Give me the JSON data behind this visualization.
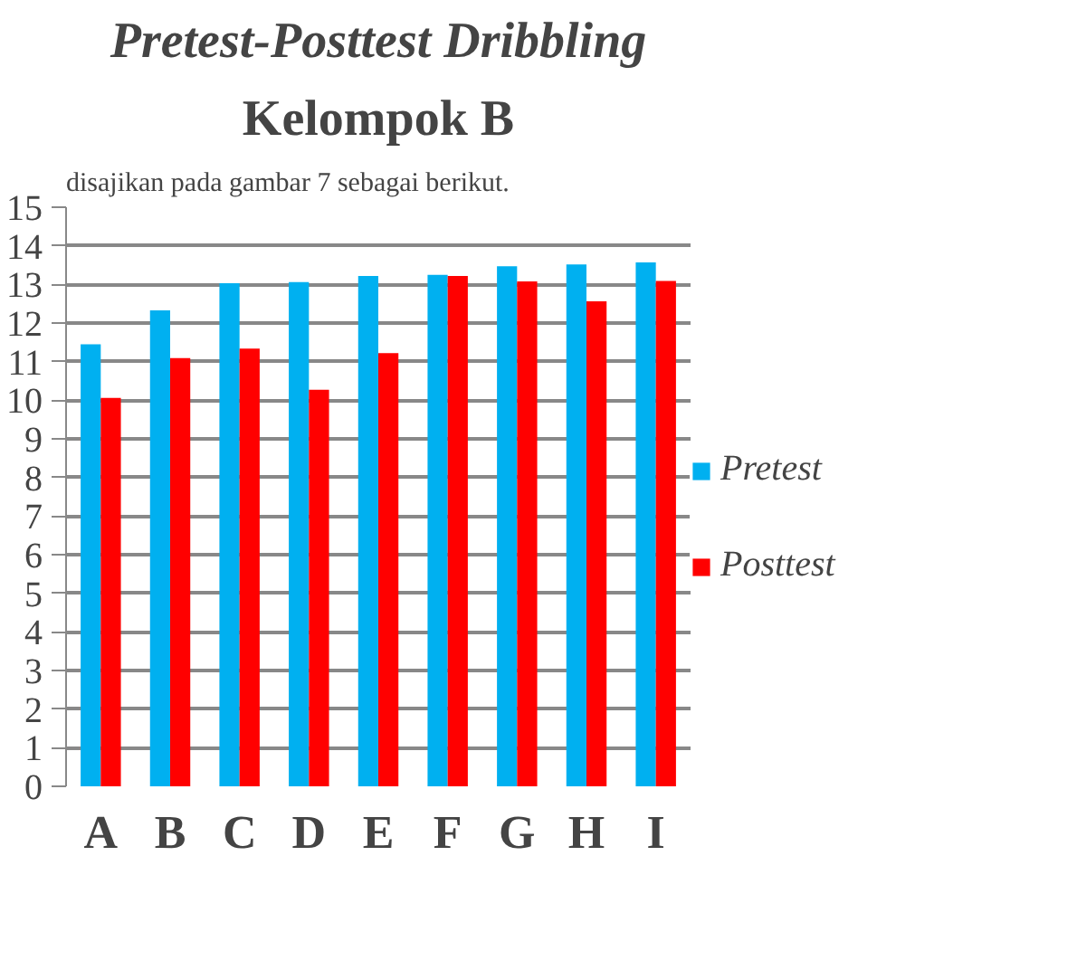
{
  "chart_data": {
    "type": "bar",
    "title": "Pretest-Posttest Dribbling",
    "subtitle": "Kelompok B",
    "annotations": [
      "disajikan pada gambar 7 sebagai berikut."
    ],
    "categories": [
      "A",
      "B",
      "C",
      "D",
      "E",
      "F",
      "G",
      "H",
      "I"
    ],
    "series": [
      {
        "name": "Pretest",
        "color": "#00b0f0",
        "values": [
          11.45,
          12.33,
          13.03,
          13.06,
          13.22,
          13.25,
          13.47,
          13.52,
          13.57
        ]
      },
      {
        "name": "Posttest",
        "color": "#ff0000",
        "values": [
          10.06,
          11.09,
          11.34,
          10.27,
          11.22,
          13.22,
          13.08,
          12.56,
          13.09
        ]
      }
    ],
    "ylim": [
      0,
      15
    ],
    "yticks": [
      0,
      1,
      2,
      3,
      4,
      5,
      6,
      7,
      8,
      9,
      10,
      11,
      12,
      13,
      14,
      15
    ],
    "grid": "y",
    "legend": "right"
  }
}
